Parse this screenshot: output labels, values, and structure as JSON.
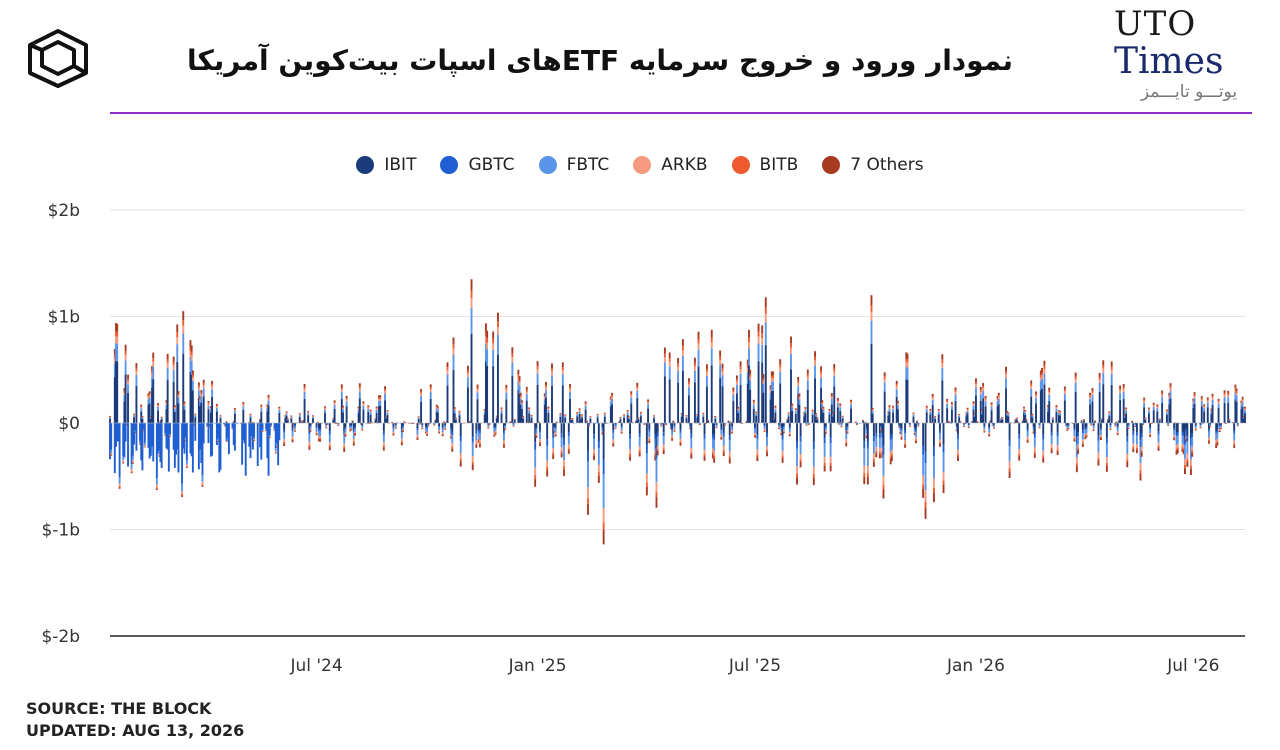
{
  "header": {
    "title": "نمودار ورود و خروج سرمایه ETFهای اسپات بیت‌کوین آمریکا",
    "logo_icon": "cube-logo-icon",
    "brand_line1": "UTO",
    "brand_line2": "Times",
    "brand_fa": "یوتـــو تایـــمز",
    "accent_color": "#8b2cc9"
  },
  "footer": {
    "source": "SOURCE: THE BLOCK",
    "updated": "UPDATED: AUG 13, 2026"
  },
  "chart_data": {
    "type": "bar",
    "stacked": true,
    "legend_position": "top",
    "grid": true,
    "ylim": [
      -2,
      2
    ],
    "y_unit": "billion USD",
    "y_ticks": [
      {
        "value": 2,
        "label": "$2b"
      },
      {
        "value": 1,
        "label": "$1b"
      },
      {
        "value": 0,
        "label": "$0"
      },
      {
        "value": -1,
        "label": "$-1b"
      },
      {
        "value": -2,
        "label": "$-2b"
      }
    ],
    "x_range": [
      "2024-01-11",
      "2026-08-13"
    ],
    "x_ticks": [
      {
        "date": "2024-07-01",
        "label": "Jul '24"
      },
      {
        "date": "2025-01-01",
        "label": "Jan '25"
      },
      {
        "date": "2025-07-01",
        "label": "Jul '25"
      },
      {
        "date": "2026-01-01",
        "label": "Jan '26"
      },
      {
        "date": "2026-07-01",
        "label": "Jul '26"
      }
    ],
    "series": [
      {
        "name": "IBIT",
        "color": "#1b3b7a"
      },
      {
        "name": "GBTC",
        "color": "#1f5fd1"
      },
      {
        "name": "FBTC",
        "color": "#5b95e9"
      },
      {
        "name": "ARKB",
        "color": "#f59a7e"
      },
      {
        "name": "BITB",
        "color": "#ef5a2e"
      },
      {
        "name": "7 Others",
        "color": "#a83a22"
      }
    ],
    "daily_net_flow_peaks": [
      {
        "date": "2024-03-12",
        "total": 1.05
      },
      {
        "date": "2024-11-07",
        "total": 1.35
      },
      {
        "date": "2025-02-25",
        "total": -1.14
      },
      {
        "date": "2025-07-10",
        "total": 1.18
      },
      {
        "date": "2025-10-06",
        "total": 1.2
      },
      {
        "date": "2025-11-20",
        "total": -0.9
      }
    ]
  }
}
